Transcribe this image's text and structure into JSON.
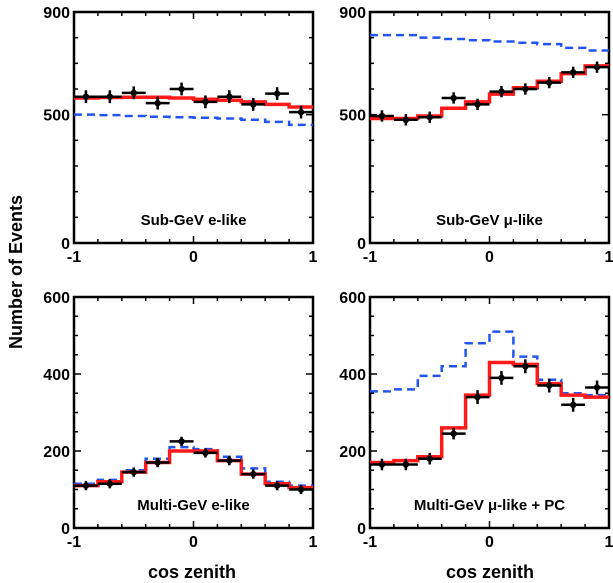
{
  "figure": {
    "ylabel": "Number of Events",
    "xlabel": "cos zenith"
  },
  "colors": {
    "prediction": "#ff1a1a",
    "no_oscillation": "#2255ee",
    "data": "#000000"
  },
  "chart_data": [
    {
      "type": "line",
      "panel_label": "Sub-GeV e-like",
      "xlabel": "",
      "ylabel": "",
      "xlim": [
        -1,
        1
      ],
      "ylim": [
        0,
        900
      ],
      "x_ticks": [
        "-1",
        "0",
        "1"
      ],
      "y_ticks": [
        {
          "value": 0,
          "label": "0"
        },
        {
          "value": 500,
          "label": "500"
        },
        {
          "value": 900,
          "label": "900"
        }
      ],
      "bin_edges": [
        -1,
        -0.8,
        -0.6,
        -0.4,
        -0.2,
        0,
        0.2,
        0.4,
        0.6,
        0.8,
        1
      ],
      "series": [
        {
          "kind": "data",
          "x": [
            -0.9,
            -0.7,
            -0.5,
            -0.3,
            -0.1,
            0.1,
            0.3,
            0.5,
            0.7,
            0.9
          ],
          "values": [
            570,
            570,
            585,
            545,
            600,
            550,
            570,
            540,
            582,
            510
          ],
          "errors": [
            25,
            25,
            25,
            25,
            25,
            25,
            25,
            25,
            25,
            25
          ]
        },
        {
          "kind": "prediction",
          "values": [
            565,
            567,
            568,
            568,
            565,
            560,
            556,
            550,
            540,
            530
          ]
        },
        {
          "kind": "no_oscillation",
          "values": [
            500,
            498,
            495,
            492,
            490,
            488,
            485,
            480,
            472,
            460
          ]
        }
      ]
    },
    {
      "type": "line",
      "panel_label": "Sub-GeV μ-like",
      "xlabel": "",
      "ylabel": "",
      "xlim": [
        -1,
        1
      ],
      "ylim": [
        0,
        900
      ],
      "x_ticks": [
        "-1",
        "0",
        "1"
      ],
      "y_ticks": [
        {
          "value": 0,
          "label": "0"
        },
        {
          "value": 500,
          "label": "500"
        },
        {
          "value": 900,
          "label": "900"
        }
      ],
      "bin_edges": [
        -1,
        -0.8,
        -0.6,
        -0.4,
        -0.2,
        0,
        0.2,
        0.4,
        0.6,
        0.8,
        1
      ],
      "series": [
        {
          "kind": "data",
          "x": [
            -0.9,
            -0.7,
            -0.5,
            -0.3,
            -0.1,
            0.1,
            0.3,
            0.5,
            0.7,
            0.9
          ],
          "values": [
            495,
            480,
            490,
            565,
            540,
            590,
            600,
            625,
            665,
            685
          ],
          "errors": [
            22,
            22,
            22,
            22,
            22,
            22,
            22,
            22,
            22,
            22
          ]
        },
        {
          "kind": "prediction",
          "values": [
            485,
            485,
            495,
            525,
            550,
            580,
            605,
            630,
            660,
            690
          ]
        },
        {
          "kind": "no_oscillation",
          "values": [
            810,
            810,
            800,
            795,
            790,
            785,
            780,
            775,
            760,
            750
          ]
        }
      ]
    },
    {
      "type": "line",
      "panel_label": "Multi-GeV e-like",
      "xlabel": "",
      "ylabel": "",
      "xlim": [
        -1,
        1
      ],
      "ylim": [
        0,
        600
      ],
      "x_ticks": [
        "-1",
        "0",
        "1"
      ],
      "y_ticks": [
        {
          "value": 0,
          "label": "0"
        },
        {
          "value": 200,
          "label": "200"
        },
        {
          "value": 400,
          "label": "400"
        },
        {
          "value": 600,
          "label": "600"
        }
      ],
      "bin_edges": [
        -1,
        -0.8,
        -0.6,
        -0.4,
        -0.2,
        0,
        0.2,
        0.4,
        0.6,
        0.8,
        1
      ],
      "series": [
        {
          "kind": "data",
          "x": [
            -0.9,
            -0.7,
            -0.5,
            -0.3,
            -0.1,
            0.1,
            0.3,
            0.5,
            0.7,
            0.9
          ],
          "values": [
            110,
            115,
            145,
            170,
            225,
            195,
            175,
            140,
            110,
            100
          ],
          "errors": [
            12,
            12,
            12,
            12,
            12,
            12,
            12,
            12,
            12,
            12
          ]
        },
        {
          "kind": "prediction",
          "values": [
            110,
            120,
            145,
            170,
            200,
            200,
            175,
            140,
            115,
            105
          ]
        },
        {
          "kind": "no_oscillation",
          "values": [
            115,
            125,
            150,
            180,
            210,
            205,
            185,
            155,
            120,
            110
          ]
        }
      ]
    },
    {
      "type": "line",
      "panel_label": "Multi-GeV μ-like + PC",
      "xlabel": "",
      "ylabel": "",
      "xlim": [
        -1,
        1
      ],
      "ylim": [
        0,
        600
      ],
      "x_ticks": [
        "-1",
        "0",
        "1"
      ],
      "y_ticks": [
        {
          "value": 0,
          "label": "0"
        },
        {
          "value": 200,
          "label": "200"
        },
        {
          "value": 400,
          "label": "400"
        },
        {
          "value": 600,
          "label": "600"
        }
      ],
      "bin_edges": [
        -1,
        -0.8,
        -0.6,
        -0.4,
        -0.2,
        0,
        0.2,
        0.4,
        0.6,
        0.8,
        1
      ],
      "series": [
        {
          "kind": "data",
          "x": [
            -0.9,
            -0.7,
            -0.5,
            -0.3,
            -0.1,
            0.1,
            0.3,
            0.5,
            0.7,
            0.9
          ],
          "values": [
            165,
            165,
            180,
            245,
            340,
            390,
            420,
            370,
            320,
            365
          ],
          "errors": [
            15,
            15,
            15,
            15,
            18,
            18,
            18,
            18,
            18,
            18
          ]
        },
        {
          "kind": "prediction",
          "values": [
            170,
            175,
            185,
            260,
            345,
            430,
            425,
            375,
            345,
            340
          ]
        },
        {
          "kind": "no_oscillation",
          "values": [
            355,
            360,
            395,
            420,
            480,
            510,
            445,
            385,
            350,
            345
          ]
        }
      ]
    }
  ]
}
